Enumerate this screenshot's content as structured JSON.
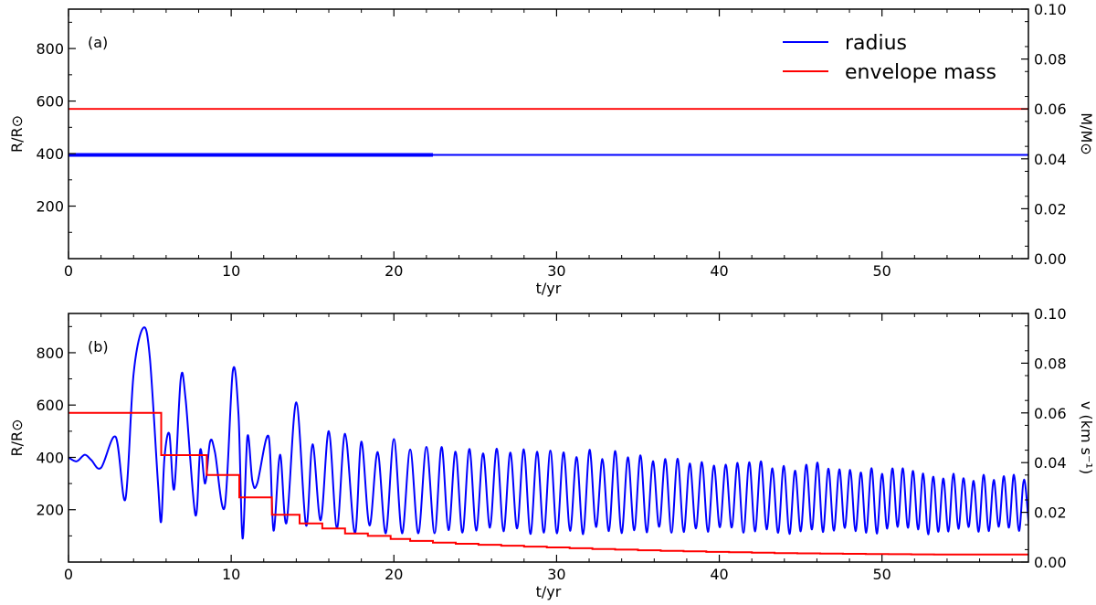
{
  "colors": {
    "radius": "#0000ff",
    "envelope": "#ff0000",
    "axes": "#000000"
  },
  "chart_data": [
    {
      "type": "line",
      "panel_label": "(a)",
      "xlabel": "t/yr",
      "ylabel_left": "R/R⊙",
      "ylabel_right": "M/M⊙",
      "xlim": [
        0,
        59
      ],
      "ylim_left": [
        0,
        950
      ],
      "ylim_right": [
        0,
        0.1
      ],
      "xticks": [
        "0",
        "10",
        "20",
        "30",
        "40",
        "50"
      ],
      "yticks_left": [
        "200",
        "400",
        "600",
        "800"
      ],
      "yticks_right": [
        "0.00",
        "0.02",
        "0.04",
        "0.06",
        "0.08",
        "0.10"
      ],
      "legend": {
        "placement": "top-right",
        "entries": [
          "radius",
          "envelope mass"
        ]
      },
      "series": [
        {
          "name": "radius",
          "axis": "left",
          "color": "#0000ff",
          "x": [
            0,
            22.4,
            22.4,
            59
          ],
          "y": [
            395,
            395,
            395,
            395
          ]
        },
        {
          "name": "envelope mass",
          "axis": "right",
          "color": "#ff0000",
          "x": [
            0,
            59
          ],
          "y": [
            0.06,
            0.06
          ]
        }
      ]
    },
    {
      "type": "line",
      "panel_label": "(b)",
      "xlabel": "t/yr",
      "ylabel_left": "R/R⊙",
      "ylabel_right": "v (km s⁻¹)",
      "xlim": [
        0,
        59
      ],
      "ylim_left": [
        0,
        950
      ],
      "ylim_right": [
        0,
        0.1
      ],
      "xticks": [
        "0",
        "10",
        "20",
        "30",
        "40",
        "50"
      ],
      "yticks_left": [
        "200",
        "400",
        "600",
        "800"
      ],
      "yticks_right": [
        "0.00",
        "0.02",
        "0.04",
        "0.06",
        "0.08",
        "0.10"
      ],
      "series": [
        {
          "name": "",
          "axis": "left",
          "color": "#0000ff",
          "x": [
            0,
            0.5,
            1.0,
            1.4,
            2.0,
            2.9,
            3.5,
            4.0,
            4.6,
            5.0,
            5.5,
            5.7,
            5.9,
            6.2,
            6.5,
            6.9,
            7.2,
            7.8,
            8.1,
            8.4,
            8.7,
            9.0,
            9.6,
            10.1,
            10.45,
            10.7,
            11.0,
            11.3,
            11.6,
            12.3,
            12.6,
            13.0,
            13.4,
            14.0,
            14.6,
            15.0,
            15.5,
            16.0,
            16.5,
            17.0,
            17.6,
            18.0,
            18.5,
            19.0,
            19.5,
            20.0,
            20.5,
            21.0,
            21.5,
            22.0,
            22.5
          ],
          "y": [
            400,
            385,
            410,
            390,
            360,
            478,
            240,
            720,
            895,
            780,
            300,
            155,
            400,
            490,
            280,
            700,
            620,
            180,
            430,
            300,
            460,
            420,
            210,
            730,
            560,
            90,
            480,
            310,
            300,
            480,
            120,
            410,
            150,
            610,
            140,
            450,
            160,
            500,
            130,
            490,
            110,
            460,
            140,
            420,
            110,
            470,
            110,
            430,
            110,
            440,
            110
          ]
        },
        {
          "name": "",
          "axis": "right",
          "color": "#ff0000",
          "steps": [
            [
              0,
              0.06
            ],
            [
              5.7,
              0.043
            ],
            [
              8.5,
              0.035
            ],
            [
              10.5,
              0.026
            ],
            [
              12.5,
              0.019
            ],
            [
              14.2,
              0.0155
            ],
            [
              15.6,
              0.0135
            ],
            [
              17.0,
              0.0115
            ],
            [
              18.4,
              0.0105
            ],
            [
              19.8,
              0.0093
            ],
            [
              21.0,
              0.0085
            ],
            [
              22.4,
              0.0078
            ]
          ],
          "tail": {
            "x_start": 22.4,
            "x_end": 59,
            "y_start": 0.0078,
            "y_end": 0.003
          }
        }
      ]
    }
  ]
}
